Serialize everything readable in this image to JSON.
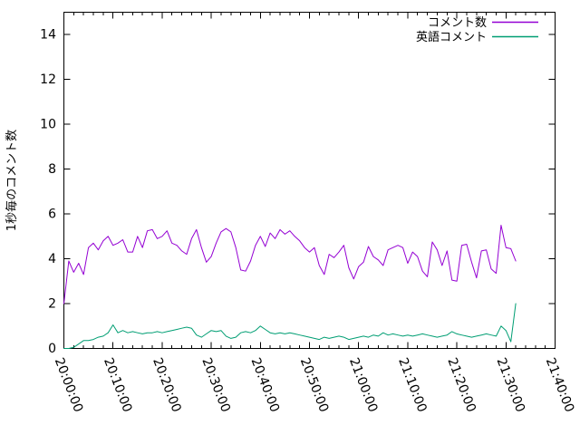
{
  "window": {
    "background": "#ffffff"
  },
  "chart_data": {
    "type": "line",
    "title": "",
    "xlabel": "",
    "ylabel": "1秒毎のコメント数",
    "grid": false,
    "legend_position": "top-right-inside",
    "axis_color": "#000000",
    "x_start": "20:00:00",
    "x_end_data": "21:32:00",
    "x_step_seconds": 60,
    "xlim_minutes": [
      0,
      100
    ],
    "ylim": [
      0,
      15
    ],
    "x_ticks": [
      "20:00:00",
      "20:10:00",
      "20:20:00",
      "20:30:00",
      "20:40:00",
      "20:50:00",
      "21:00:00",
      "21:10:00",
      "21:20:00",
      "21:30:00",
      "21:40:00"
    ],
    "x_minor_tick_minutes": 2,
    "y_ticks": [
      0,
      2,
      4,
      6,
      8,
      10,
      12,
      14
    ],
    "series": [
      {
        "name": "コメント数",
        "color": "#9400d3",
        "values": [
          2.0,
          3.9,
          3.4,
          3.8,
          3.3,
          4.5,
          4.7,
          4.4,
          4.8,
          5.0,
          4.6,
          4.7,
          4.85,
          4.3,
          4.3,
          5.0,
          4.5,
          5.25,
          5.3,
          4.9,
          5.0,
          5.25,
          4.7,
          4.6,
          4.35,
          4.2,
          4.9,
          5.3,
          4.5,
          3.85,
          4.1,
          4.7,
          5.2,
          5.35,
          5.2,
          4.5,
          3.5,
          3.45,
          3.9,
          4.6,
          5.0,
          4.55,
          5.15,
          4.9,
          5.3,
          5.1,
          5.25,
          5.0,
          4.8,
          4.5,
          4.3,
          4.5,
          3.7,
          3.3,
          4.2,
          4.05,
          4.3,
          4.6,
          3.6,
          3.1,
          3.65,
          3.85,
          4.55,
          4.1,
          3.95,
          3.7,
          4.4,
          4.5,
          4.6,
          4.5,
          3.8,
          4.3,
          4.1,
          3.45,
          3.2,
          4.75,
          4.4,
          3.7,
          4.35,
          3.05,
          3.0,
          4.6,
          4.65,
          3.85,
          3.15,
          4.35,
          4.4,
          3.55,
          3.35,
          5.5,
          4.5,
          4.45,
          3.9
        ]
      },
      {
        "name": "英語コメント",
        "color": "#009e73",
        "values": [
          0,
          0,
          0.05,
          0.2,
          0.35,
          0.35,
          0.4,
          0.5,
          0.55,
          0.7,
          1.05,
          0.7,
          0.8,
          0.7,
          0.75,
          0.7,
          0.65,
          0.7,
          0.7,
          0.75,
          0.7,
          0.75,
          0.8,
          0.85,
          0.9,
          0.95,
          0.9,
          0.6,
          0.5,
          0.65,
          0.8,
          0.75,
          0.8,
          0.55,
          0.45,
          0.5,
          0.7,
          0.75,
          0.7,
          0.8,
          1.0,
          0.85,
          0.7,
          0.65,
          0.7,
          0.65,
          0.7,
          0.65,
          0.6,
          0.55,
          0.5,
          0.45,
          0.4,
          0.5,
          0.45,
          0.5,
          0.55,
          0.5,
          0.4,
          0.45,
          0.5,
          0.55,
          0.5,
          0.6,
          0.55,
          0.7,
          0.6,
          0.65,
          0.6,
          0.55,
          0.6,
          0.55,
          0.6,
          0.65,
          0.6,
          0.55,
          0.5,
          0.55,
          0.6,
          0.75,
          0.65,
          0.6,
          0.55,
          0.5,
          0.55,
          0.6,
          0.65,
          0.6,
          0.55,
          1.0,
          0.8,
          0.3,
          2.0
        ]
      }
    ]
  }
}
